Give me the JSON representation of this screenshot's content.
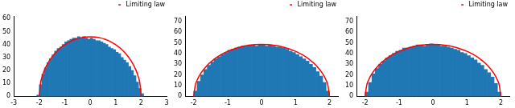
{
  "chart_data": [
    {
      "type": "histogram",
      "color": "#1f77b4",
      "legend": "upper right",
      "grid": false,
      "bins": [
        -2.1,
        -2.0,
        -1.9,
        -1.8,
        -1.7,
        -1.6,
        -1.5,
        -1.4,
        -1.3,
        -1.2,
        -1.1,
        -1.0,
        -0.9,
        -0.8,
        -0.7,
        -0.6,
        -0.5,
        -0.4,
        -0.3,
        -0.2,
        -0.1,
        0.0,
        0.1,
        0.2,
        0.3,
        0.4,
        0.5,
        0.6,
        0.7,
        0.8,
        0.9,
        1.0,
        1.1,
        1.2,
        1.3,
        1.4,
        1.5,
        1.6,
        1.7,
        1.8,
        1.9,
        2.0,
        2.1
      ],
      "counts": [
        1,
        9,
        17,
        22,
        26,
        29,
        32,
        35,
        37,
        38,
        40,
        42,
        43,
        44,
        45,
        45,
        46,
        45,
        46,
        45,
        44,
        45,
        44,
        43,
        43,
        42,
        41,
        40,
        38,
        37,
        36,
        34,
        33,
        30,
        28,
        26,
        23,
        20,
        16,
        11,
        6,
        2
      ],
      "series": [
        {
          "name": "Limiting law",
          "type": "line",
          "color": "#ff0000",
          "x": [
            -2,
            -1.95,
            -1.9,
            -1.8,
            -1.6,
            -1.4,
            -1.2,
            -1,
            -0.8,
            -0.6,
            -0.4,
            -0.2,
            0,
            0.2,
            0.4,
            0.6,
            0.8,
            1,
            1.2,
            1.4,
            1.6,
            1.8,
            1.9,
            1.95,
            2
          ],
          "values": [
            0,
            10.2,
            14.4,
            20.1,
            27.6,
            32.8,
            36.8,
            39.8,
            42.2,
            43.9,
            45.1,
            45.8,
            46,
            45.8,
            45.1,
            43.9,
            42.2,
            39.8,
            36.8,
            32.8,
            27.6,
            20.1,
            14.4,
            10.2,
            0
          ]
        }
      ],
      "xlim": [
        -3,
        3
      ],
      "xticks": [
        -3,
        -2,
        -1,
        0,
        1,
        2,
        3
      ],
      "ylim": [
        0,
        62
      ],
      "yticks": [
        0,
        10,
        20,
        30,
        40,
        50,
        60
      ]
    },
    {
      "type": "histogram",
      "color": "#1f77b4",
      "legend": "upper right",
      "grid": false,
      "bins": [
        -2.0,
        -1.9,
        -1.8,
        -1.7,
        -1.6,
        -1.5,
        -1.4,
        -1.3,
        -1.2,
        -1.1,
        -1.0,
        -0.9,
        -0.8,
        -0.7,
        -0.6,
        -0.5,
        -0.4,
        -0.3,
        -0.2,
        -0.1,
        0.0,
        0.1,
        0.2,
        0.3,
        0.4,
        0.5,
        0.6,
        0.7,
        0.8,
        0.9,
        1.0,
        1.1,
        1.2,
        1.3,
        1.4,
        1.5,
        1.6,
        1.7,
        1.8,
        1.9,
        2.0
      ],
      "counts": [
        5,
        14,
        20,
        25,
        29,
        32,
        35,
        37,
        39,
        41,
        43,
        44,
        45,
        46,
        47,
        47,
        48,
        48,
        47,
        48,
        48,
        47,
        48,
        47,
        46,
        46,
        45,
        44,
        42,
        41,
        39,
        37,
        35,
        33,
        30,
        27,
        23,
        19,
        13,
        5
      ],
      "series": [
        {
          "name": "Limiting law",
          "type": "line",
          "color": "#ff0000",
          "x": [
            -2,
            -1.95,
            -1.9,
            -1.8,
            -1.6,
            -1.4,
            -1.2,
            -1,
            -0.8,
            -0.6,
            -0.4,
            -0.2,
            0,
            0.2,
            0.4,
            0.6,
            0.8,
            1,
            1.2,
            1.4,
            1.6,
            1.8,
            1.9,
            1.95,
            2
          ],
          "values": [
            0,
            10.8,
            15.1,
            21.1,
            29.1,
            34.6,
            38.8,
            42.0,
            44.4,
            46.3,
            47.5,
            48.3,
            48.5,
            48.3,
            47.5,
            46.3,
            44.4,
            42.0,
            38.8,
            34.6,
            29.1,
            21.1,
            15.1,
            10.8,
            0
          ]
        }
      ],
      "xlim": [
        -2.25,
        2.25
      ],
      "xticks": [
        -2,
        -1,
        0,
        1,
        2
      ],
      "ylim": [
        0,
        75
      ],
      "yticks": [
        0,
        10,
        20,
        30,
        40,
        50,
        60,
        70
      ]
    },
    {
      "type": "histogram",
      "color": "#1f77b4",
      "legend": "upper right",
      "grid": false,
      "bins": [
        -2.0,
        -1.9,
        -1.8,
        -1.7,
        -1.6,
        -1.5,
        -1.4,
        -1.3,
        -1.2,
        -1.1,
        -1.0,
        -0.9,
        -0.8,
        -0.7,
        -0.6,
        -0.5,
        -0.4,
        -0.3,
        -0.2,
        -0.1,
        0.0,
        0.1,
        0.2,
        0.3,
        0.4,
        0.5,
        0.6,
        0.7,
        0.8,
        0.9,
        1.0,
        1.1,
        1.2,
        1.3,
        1.4,
        1.5,
        1.6,
        1.7,
        1.8,
        1.9,
        2.0
      ],
      "counts": [
        4,
        13,
        21,
        26,
        30,
        33,
        36,
        38,
        40,
        42,
        43,
        45,
        45,
        46,
        47,
        48,
        48,
        47,
        48,
        49,
        48,
        48,
        47,
        47,
        46,
        45,
        44,
        43,
        41,
        40,
        38,
        36,
        34,
        31,
        29,
        25,
        22,
        18,
        12,
        4
      ],
      "series": [
        {
          "name": "Limiting law",
          "type": "line",
          "color": "#ff0000",
          "x": [
            -2,
            -1.95,
            -1.9,
            -1.8,
            -1.6,
            -1.4,
            -1.2,
            -1,
            -0.8,
            -0.6,
            -0.4,
            -0.2,
            0,
            0.2,
            0.4,
            0.6,
            0.8,
            1,
            1.2,
            1.4,
            1.6,
            1.8,
            1.9,
            1.95,
            2
          ],
          "values": [
            0,
            10.8,
            15.1,
            21.1,
            29.1,
            34.6,
            38.8,
            42.0,
            44.4,
            46.3,
            47.5,
            48.3,
            48.5,
            48.3,
            47.5,
            46.3,
            44.4,
            42.0,
            38.8,
            34.6,
            29.1,
            21.1,
            15.1,
            10.8,
            0
          ]
        }
      ],
      "xlim": [
        -2.25,
        2.25
      ],
      "xticks": [
        -2,
        -1,
        0,
        1,
        2
      ],
      "ylim": [
        0,
        75
      ],
      "yticks": [
        0,
        10,
        20,
        30,
        40,
        50,
        60,
        70
      ]
    }
  ]
}
